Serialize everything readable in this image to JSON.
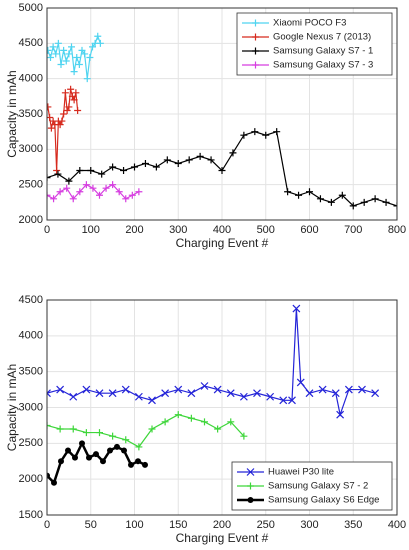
{
  "chart_data": [
    {
      "type": "line",
      "xlabel": "Charging Event #",
      "ylabel": "Capacity in mAh",
      "xlim": [
        0,
        800
      ],
      "xticks": [
        0,
        100,
        200,
        300,
        400,
        500,
        600,
        700,
        800
      ],
      "ylim": [
        2000,
        5000
      ],
      "yticks": [
        2000,
        2500,
        3000,
        3500,
        4000,
        4500,
        5000
      ],
      "grid": true,
      "legend": "upper right",
      "series": [
        {
          "name": "Xiaomi POCO F3",
          "color": "#4fd4f0",
          "marker": "+",
          "x": [
            2,
            8,
            14,
            20,
            26,
            32,
            38,
            44,
            50,
            56,
            62,
            68,
            74,
            80,
            86,
            92,
            98,
            104,
            110,
            116,
            122
          ],
          "values": [
            4400,
            4300,
            4450,
            4350,
            4500,
            4200,
            4400,
            4250,
            4350,
            4450,
            4100,
            4300,
            4200,
            4400,
            4350,
            4000,
            4300,
            4450,
            4500,
            4600,
            4500
          ]
        },
        {
          "name": "Google Nexus 7 (2013)",
          "color": "#d62a1e",
          "marker": "+",
          "x": [
            2,
            6,
            10,
            14,
            18,
            22,
            26,
            30,
            34,
            38,
            42,
            46,
            50,
            54,
            58,
            62,
            66,
            70
          ],
          "values": [
            3600,
            3450,
            3300,
            3400,
            3350,
            2700,
            3400,
            3350,
            3400,
            3500,
            3800,
            3550,
            3600,
            3850,
            3750,
            3700,
            3800,
            3550
          ]
        },
        {
          "name": "Samsung Galaxy S7 - 1",
          "color": "#000000",
          "marker": "+",
          "x": [
            0,
            25,
            50,
            75,
            100,
            125,
            150,
            175,
            200,
            225,
            250,
            275,
            300,
            325,
            350,
            375,
            400,
            425,
            450,
            475,
            500,
            525,
            550,
            575,
            600,
            625,
            650,
            675,
            700,
            725,
            750,
            775,
            800
          ],
          "values": [
            2600,
            2650,
            2550,
            2700,
            2700,
            2650,
            2750,
            2700,
            2750,
            2800,
            2750,
            2850,
            2800,
            2850,
            2900,
            2850,
            2700,
            2950,
            3200,
            3250,
            3200,
            3250,
            2400,
            2350,
            2400,
            2300,
            2250,
            2350,
            2200,
            2250,
            2300,
            2250,
            2200
          ]
        },
        {
          "name": "Samsung Galaxy S7 - 3",
          "color": "#d63ee0",
          "marker": "+",
          "x": [
            0,
            15,
            30,
            45,
            60,
            75,
            90,
            105,
            120,
            135,
            150,
            165,
            180,
            195,
            210
          ],
          "values": [
            2350,
            2300,
            2400,
            2450,
            2300,
            2400,
            2500,
            2450,
            2350,
            2450,
            2500,
            2400,
            2300,
            2350,
            2400
          ]
        }
      ]
    },
    {
      "type": "line",
      "xlabel": "Charging Event #",
      "ylabel": "Capacity in mAh",
      "xlim": [
        0,
        400
      ],
      "xticks": [
        0,
        50,
        100,
        150,
        200,
        250,
        300,
        350,
        400
      ],
      "ylim": [
        1500,
        4500
      ],
      "yticks": [
        1500,
        2000,
        2500,
        3000,
        3500,
        4000,
        4500
      ],
      "grid": true,
      "legend": "lower right",
      "series": [
        {
          "name": "Huawei P30 lite",
          "color": "#2424d8",
          "marker": "x",
          "x": [
            0,
            15,
            30,
            45,
            60,
            75,
            90,
            105,
            120,
            135,
            150,
            165,
            180,
            195,
            210,
            225,
            240,
            255,
            270,
            280,
            285,
            290,
            300,
            315,
            330,
            335,
            345,
            360,
            375
          ],
          "values": [
            3200,
            3250,
            3150,
            3250,
            3200,
            3200,
            3250,
            3150,
            3100,
            3200,
            3250,
            3200,
            3300,
            3250,
            3200,
            3150,
            3200,
            3150,
            3100,
            3100,
            4380,
            3350,
            3200,
            3250,
            3200,
            2900,
            3250,
            3250,
            3200
          ]
        },
        {
          "name": "Samsung Galaxy S7 - 2",
          "color": "#3ed63a",
          "marker": "+",
          "x": [
            0,
            15,
            30,
            45,
            60,
            75,
            90,
            105,
            120,
            135,
            150,
            165,
            180,
            195,
            210,
            225
          ],
          "values": [
            2750,
            2700,
            2700,
            2650,
            2650,
            2600,
            2550,
            2450,
            2700,
            2800,
            2900,
            2850,
            2800,
            2700,
            2800,
            2600
          ]
        },
        {
          "name": "Samsung Galaxy S6 Edge",
          "color": "#000000",
          "marker": "o",
          "x": [
            0,
            8,
            16,
            24,
            32,
            40,
            48,
            56,
            64,
            72,
            80,
            88,
            96,
            104,
            112
          ],
          "values": [
            2050,
            1950,
            2250,
            2400,
            2300,
            2500,
            2300,
            2350,
            2250,
            2400,
            2450,
            2400,
            2200,
            2250,
            2200
          ]
        }
      ]
    }
  ]
}
